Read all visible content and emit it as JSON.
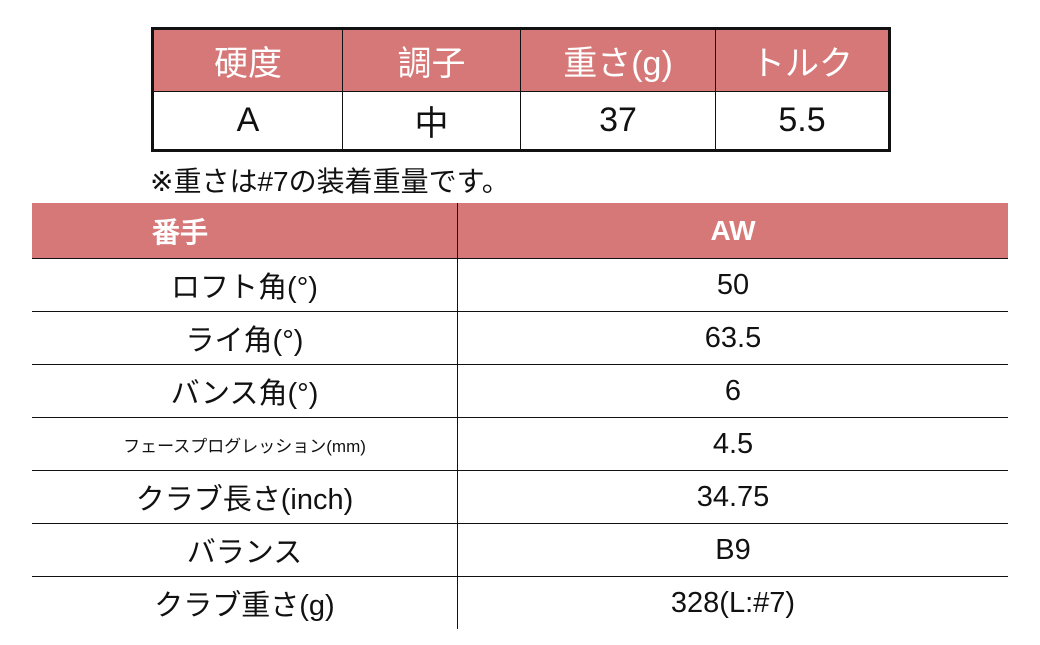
{
  "shaft_table": {
    "headers": [
      "硬度",
      "調子",
      "重さ(g)",
      "トルク"
    ],
    "values": [
      "A",
      "中",
      "37",
      "5.5"
    ]
  },
  "note": "※重さは#7の装着重量です。",
  "spec_table": {
    "header_key": "番手",
    "header_value": "AW",
    "rows": [
      {
        "label": "ロフト角(°)",
        "value": "50"
      },
      {
        "label": "ライ角(°)",
        "value": "63.5"
      },
      {
        "label": "バンス角(°)",
        "value": "6"
      },
      {
        "label": "フェースプログレッション(mm)",
        "value": "4.5"
      },
      {
        "label": "クラブ長さ(inch)",
        "value": "34.75"
      },
      {
        "label": "バランス",
        "value": "B9"
      },
      {
        "label": "クラブ重さ(g)",
        "value": "328(L:#7)"
      }
    ]
  },
  "colors": {
    "header_bg": "#d67878",
    "header_text": "#ffffff"
  }
}
